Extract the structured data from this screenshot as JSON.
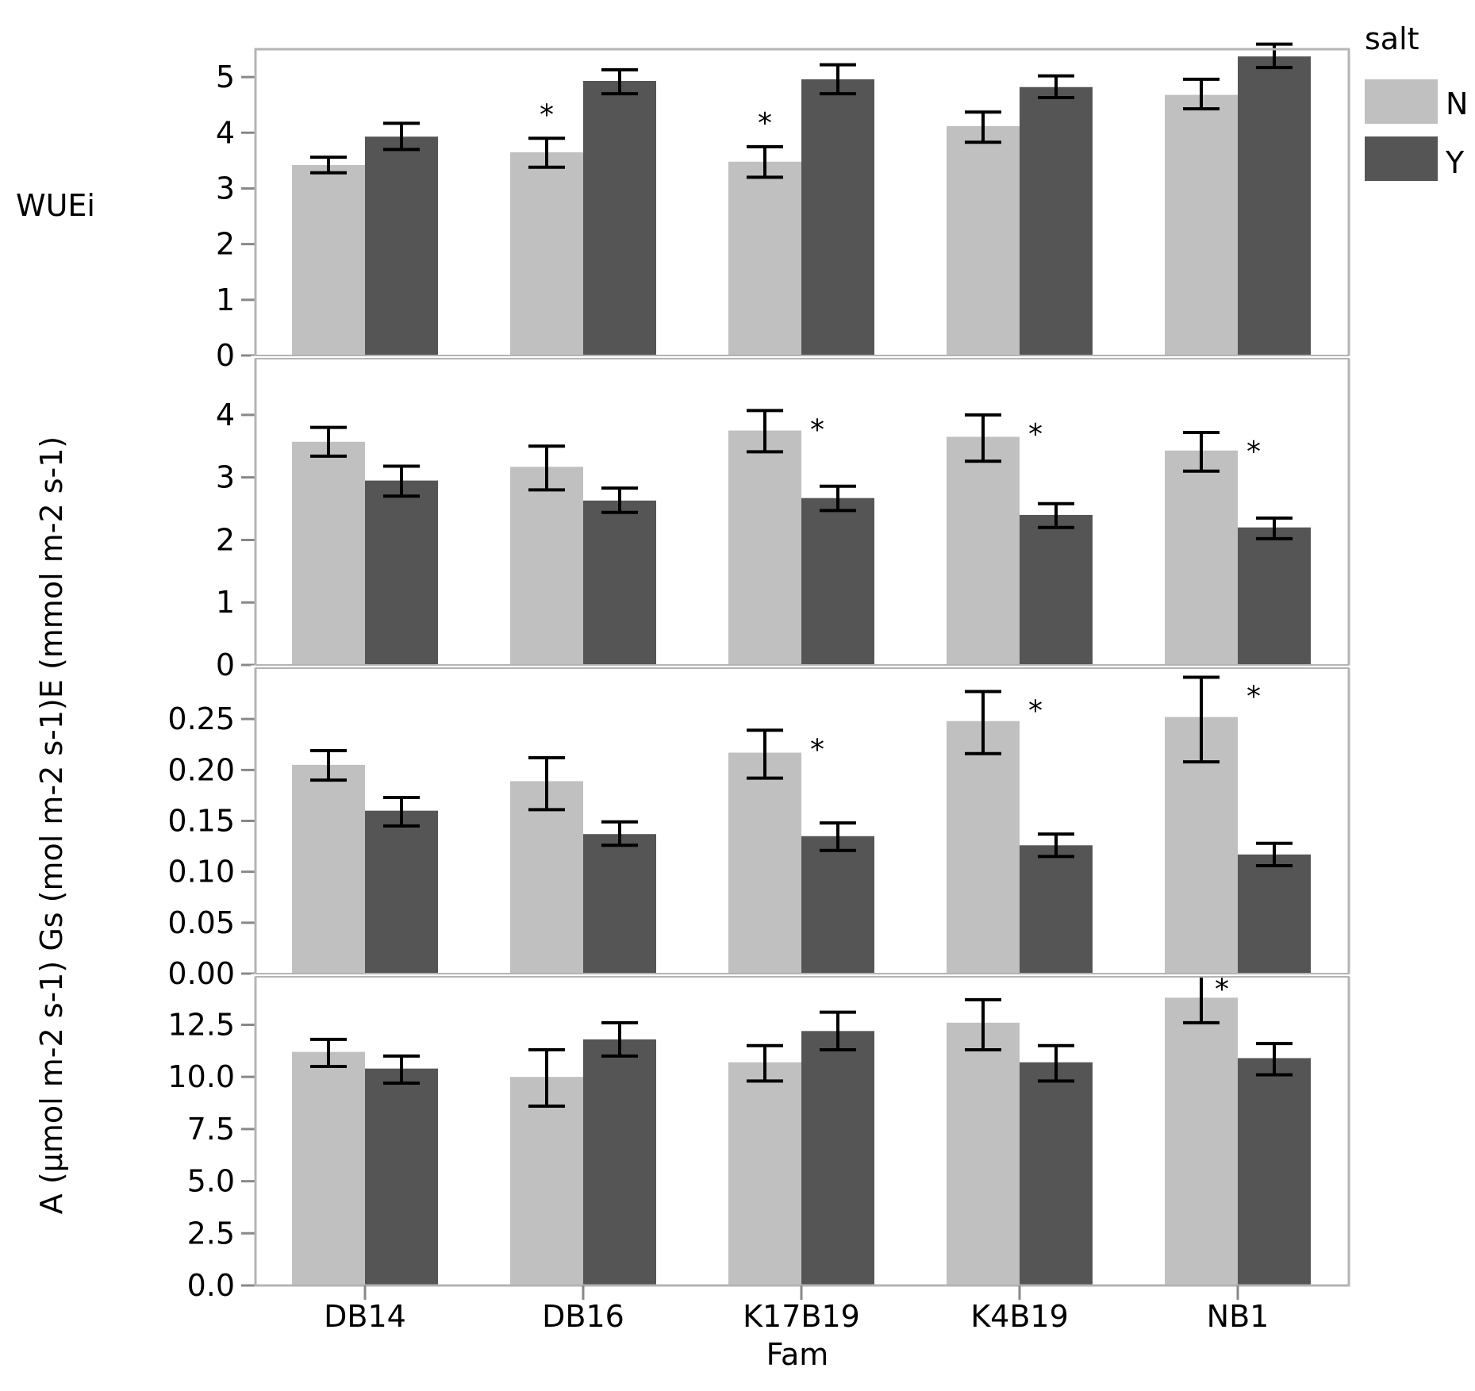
{
  "chart_data": {
    "type": "bar",
    "x_axis_title": "Fam",
    "categories": [
      "DB14",
      "DB16",
      "K17B19",
      "K4B19",
      "NB1"
    ],
    "legend": {
      "title": "salt",
      "placement": "top-right",
      "entries": [
        {
          "label": "N",
          "color": "#c0c0c0"
        },
        {
          "label": "Y",
          "color": "#555555"
        }
      ]
    },
    "y_axis_title_combined": "A (µmol m-2 s-1) Gs (mol m-2 s-1)E (mmol m-2 s-1)",
    "panels": [
      {
        "ylabel": "WUEi",
        "ylim": [
          0,
          5.5
        ],
        "ticks": [
          {
            "value": 0,
            "label": "0"
          },
          {
            "value": 1,
            "label": "1"
          },
          {
            "value": 2,
            "label": "2"
          },
          {
            "value": 3,
            "label": "3"
          },
          {
            "value": 4,
            "label": "4"
          },
          {
            "value": 5,
            "label": "5"
          }
        ],
        "series": [
          {
            "name": "N",
            "values": [
              3.42,
              3.65,
              3.48,
              4.12,
              4.68
            ],
            "err_low": [
              3.28,
              3.38,
              3.2,
              3.83,
              4.43
            ],
            "err_high": [
              3.56,
              3.9,
              3.75,
              4.37,
              4.96
            ]
          },
          {
            "name": "Y",
            "values": [
              3.93,
              4.93,
              4.96,
              4.82,
              5.37
            ],
            "err_low": [
              3.7,
              4.7,
              4.7,
              4.63,
              5.17
            ],
            "err_high": [
              4.17,
              5.13,
              5.22,
              5.02,
              5.59
            ]
          }
        ],
        "annotations": [
          {
            "category": "DB16",
            "series": "N",
            "text": "*"
          },
          {
            "category": "K17B19",
            "series": "N",
            "text": "*"
          }
        ]
      },
      {
        "ylabel": "E (mmol m-2 s-1)",
        "ylim": [
          0,
          4.9
        ],
        "ticks": [
          {
            "value": 0,
            "label": "0"
          },
          {
            "value": 1,
            "label": "1"
          },
          {
            "value": 2,
            "label": "2"
          },
          {
            "value": 3,
            "label": "3"
          },
          {
            "value": 4,
            "label": "4"
          }
        ],
        "series": [
          {
            "name": "N",
            "values": [
              3.57,
              3.17,
              3.75,
              3.65,
              3.43
            ],
            "err_low": [
              3.34,
              2.8,
              3.41,
              3.26,
              3.1
            ],
            "err_high": [
              3.8,
              3.5,
              4.07,
              4.0,
              3.72
            ]
          },
          {
            "name": "Y",
            "values": [
              2.95,
              2.63,
              2.67,
              2.4,
              2.2
            ],
            "err_low": [
              2.7,
              2.44,
              2.47,
              2.2,
              2.02
            ],
            "err_high": [
              3.18,
              2.83,
              2.86,
              2.58,
              2.35
            ]
          }
        ],
        "annotations": [
          {
            "category": "K17B19",
            "series": "Y",
            "text": "*"
          },
          {
            "category": "K4B19",
            "series": "Y",
            "text": "*"
          },
          {
            "category": "NB1",
            "series": "Y",
            "text": "*"
          }
        ]
      },
      {
        "ylabel": "Gs (mol m-2 s-1)",
        "ylim": [
          0,
          0.3
        ],
        "ticks": [
          {
            "value": 0,
            "label": "0.00"
          },
          {
            "value": 0.05,
            "label": "0.05"
          },
          {
            "value": 0.1,
            "label": "0.10"
          },
          {
            "value": 0.15,
            "label": "0.15"
          },
          {
            "value": 0.2,
            "label": "0.20"
          },
          {
            "value": 0.25,
            "label": "0.25"
          }
        ],
        "series": [
          {
            "name": "N",
            "values": [
              0.205,
              0.189,
              0.217,
              0.248,
              0.252
            ],
            "err_low": [
              0.19,
              0.161,
              0.192,
              0.216,
              0.208
            ],
            "err_high": [
              0.219,
              0.212,
              0.239,
              0.277,
              0.291
            ]
          },
          {
            "name": "Y",
            "values": [
              0.16,
              0.137,
              0.135,
              0.126,
              0.117
            ],
            "err_low": [
              0.145,
              0.126,
              0.121,
              0.115,
              0.106
            ],
            "err_high": [
              0.173,
              0.149,
              0.148,
              0.137,
              0.128
            ]
          }
        ],
        "annotations": [
          {
            "category": "K17B19",
            "series": "Y",
            "text": "*"
          },
          {
            "category": "K4B19",
            "series": "Y",
            "text": "*"
          },
          {
            "category": "NB1",
            "series": "Y",
            "text": "*"
          }
        ]
      },
      {
        "ylabel": "A (µmol m-2 s-1)",
        "ylim": [
          0,
          14.8
        ],
        "ticks": [
          {
            "value": 0,
            "label": "0.0"
          },
          {
            "value": 2.5,
            "label": "2.5"
          },
          {
            "value": 5,
            "label": "5.0"
          },
          {
            "value": 7.5,
            "label": "7.5"
          },
          {
            "value": 10,
            "label": "10.0"
          },
          {
            "value": 12.5,
            "label": "12.5"
          }
        ],
        "series": [
          {
            "name": "N",
            "values": [
              11.2,
              10.0,
              10.7,
              12.6,
              13.8
            ],
            "err_low": [
              10.5,
              8.6,
              9.8,
              11.3,
              12.6
            ],
            "err_high": [
              11.8,
              11.3,
              11.5,
              13.7,
              14.9
            ]
          },
          {
            "name": "Y",
            "values": [
              10.4,
              11.8,
              12.2,
              10.7,
              10.9
            ],
            "err_low": [
              9.7,
              11.0,
              11.3,
              9.8,
              10.1
            ],
            "err_high": [
              11.0,
              12.6,
              13.1,
              11.5,
              11.6
            ]
          }
        ],
        "annotations": [
          {
            "category": "NB1",
            "series": "N",
            "text": "*"
          }
        ]
      }
    ]
  }
}
